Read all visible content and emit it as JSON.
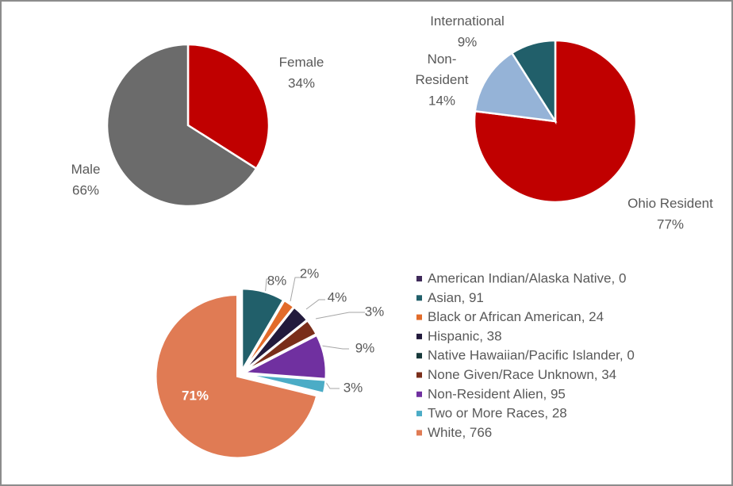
{
  "chart_data": [
    {
      "type": "pie",
      "categories": [
        "Female",
        "Male"
      ],
      "values": [
        34,
        66
      ],
      "value_labels": [
        "34%",
        "66%"
      ],
      "colors": [
        "#c00000",
        "#6b6b6b"
      ]
    },
    {
      "type": "pie",
      "categories": [
        "Ohio Resident",
        "Non-Resident",
        "International"
      ],
      "values": [
        77,
        14,
        9
      ],
      "value_labels": [
        "77%",
        "14%",
        "9%"
      ],
      "colors": [
        "#c00000",
        "#95b3d7",
        "#215f6a"
      ]
    },
    {
      "type": "pie",
      "categories": [
        "American Indian/Alaska Native, 0",
        "Asian, 91",
        "Black or African American, 24",
        "Hispanic, 38",
        "Native Hawaiian/Pacific Islander, 0",
        "None Given/Race Unknown, 34",
        "Non-Resident Alien, 95",
        "Two or More Races, 28",
        "White, 766"
      ],
      "values": [
        0,
        91,
        24,
        38,
        0,
        34,
        95,
        28,
        766
      ],
      "value_labels": [
        null,
        "8%",
        "2%",
        "4%",
        null,
        "3%",
        "9%",
        "3%",
        "71%"
      ],
      "colors": [
        "#3f2a5a",
        "#215f6a",
        "#e26b2a",
        "#221a3c",
        "#17393a",
        "#7a2e1a",
        "#7030a0",
        "#4bacc6",
        "#e07b54"
      ],
      "legend": "right"
    }
  ]
}
